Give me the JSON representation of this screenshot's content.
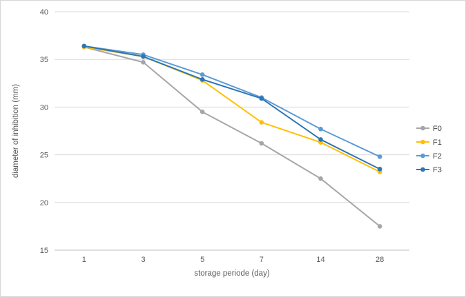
{
  "chart_data": {
    "type": "line",
    "title": "",
    "xlabel": "storage periode (day)",
    "ylabel": "diameter of inhibition (mm)",
    "categories": [
      "1",
      "3",
      "5",
      "7",
      "14",
      "28"
    ],
    "yticks": [
      15,
      20,
      25,
      30,
      35,
      40
    ],
    "ylim": [
      15,
      40
    ],
    "grid": true,
    "legend_position": "right",
    "series": [
      {
        "name": "F0",
        "color": "#a6a6a6",
        "values": [
          36.3,
          34.7,
          29.5,
          26.2,
          22.5,
          17.5
        ]
      },
      {
        "name": "F1",
        "color": "#ffc000",
        "values": [
          36.3,
          35.3,
          32.8,
          28.4,
          26.3,
          23.2
        ]
      },
      {
        "name": "F2",
        "color": "#5b9bd5",
        "values": [
          36.4,
          35.5,
          33.4,
          31.0,
          27.7,
          24.8
        ]
      },
      {
        "name": "F3",
        "color": "#2e75b6",
        "values": [
          36.4,
          35.3,
          32.9,
          30.9,
          26.6,
          23.5
        ]
      }
    ],
    "colors": {
      "gridline": "#d9d9d9",
      "axis_line": "#bfbfbf",
      "tick_text": "#595959",
      "legend_text": "#404040",
      "frame_border": "#d6d6d6"
    }
  }
}
